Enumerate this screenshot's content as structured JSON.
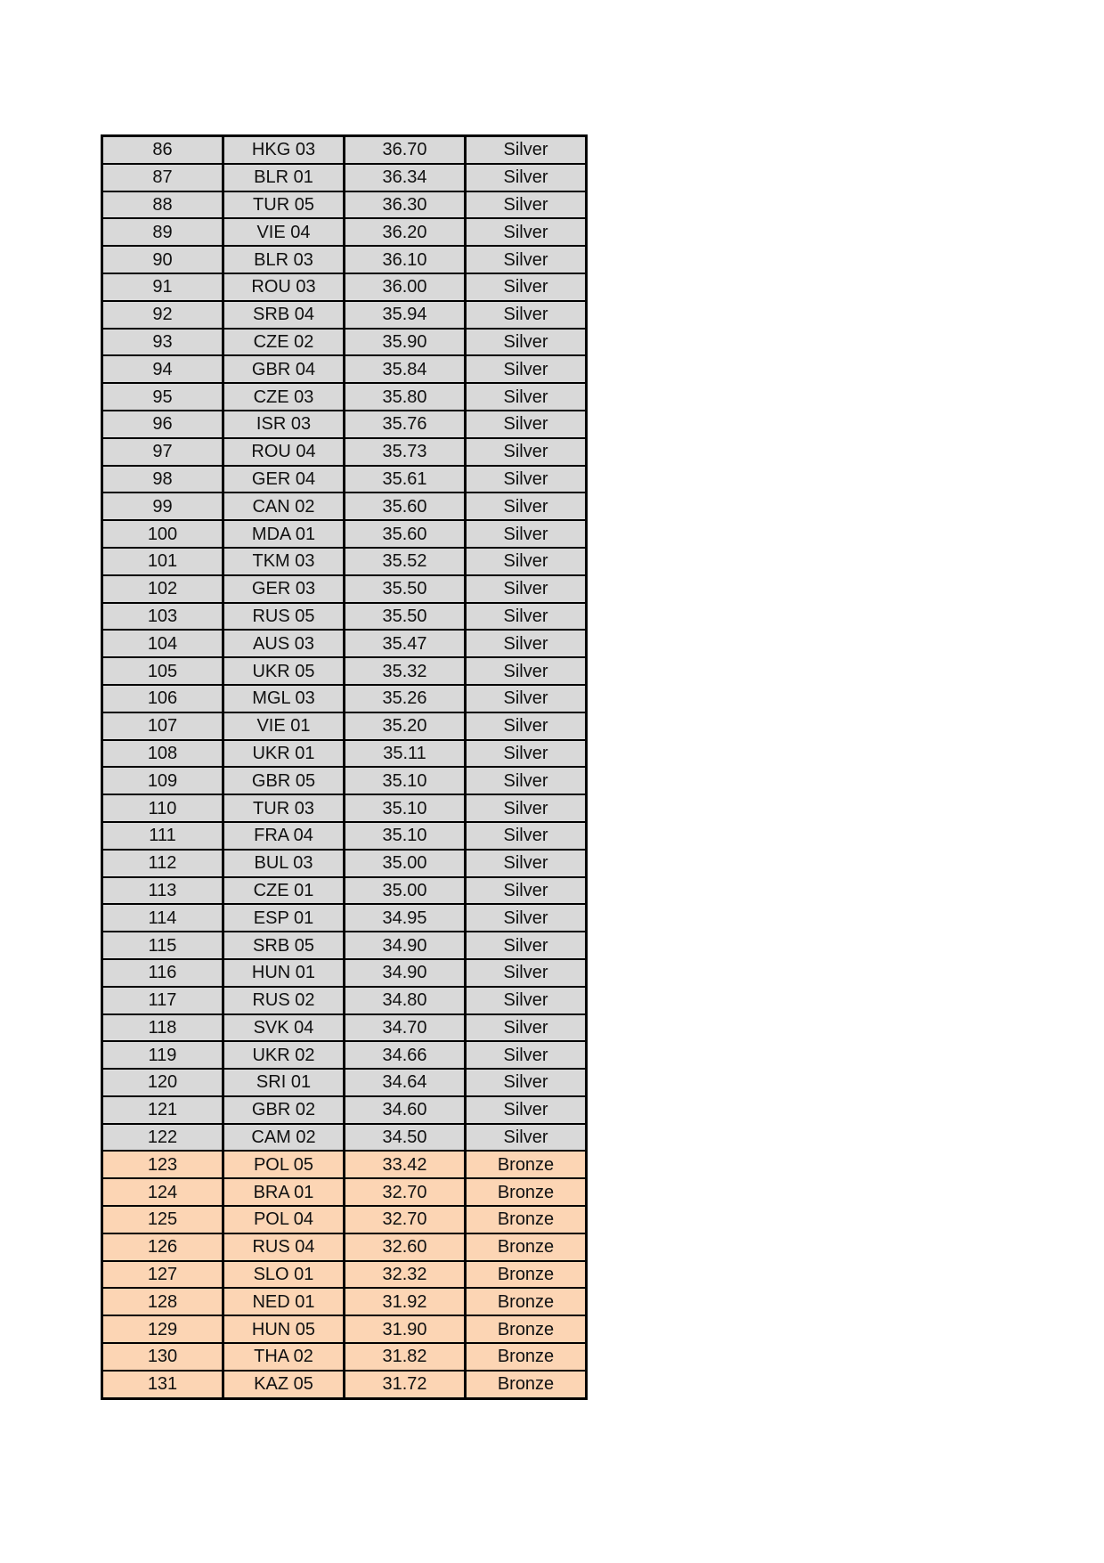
{
  "colors": {
    "Silver": "#d9d9d9",
    "Bronze": "#fcd5b4"
  },
  "rows": [
    [
      "86",
      "HKG 03",
      "36.70",
      "Silver"
    ],
    [
      "87",
      "BLR 01",
      "36.34",
      "Silver"
    ],
    [
      "88",
      "TUR 05",
      "36.30",
      "Silver"
    ],
    [
      "89",
      "VIE 04",
      "36.20",
      "Silver"
    ],
    [
      "90",
      "BLR 03",
      "36.10",
      "Silver"
    ],
    [
      "91",
      "ROU 03",
      "36.00",
      "Silver"
    ],
    [
      "92",
      "SRB 04",
      "35.94",
      "Silver"
    ],
    [
      "93",
      "CZE 02",
      "35.90",
      "Silver"
    ],
    [
      "94",
      "GBR 04",
      "35.84",
      "Silver"
    ],
    [
      "95",
      "CZE 03",
      "35.80",
      "Silver"
    ],
    [
      "96",
      "ISR 03",
      "35.76",
      "Silver"
    ],
    [
      "97",
      "ROU 04",
      "35.73",
      "Silver"
    ],
    [
      "98",
      "GER 04",
      "35.61",
      "Silver"
    ],
    [
      "99",
      "CAN 02",
      "35.60",
      "Silver"
    ],
    [
      "100",
      "MDA 01",
      "35.60",
      "Silver"
    ],
    [
      "101",
      "TKM 03",
      "35.52",
      "Silver"
    ],
    [
      "102",
      "GER 03",
      "35.50",
      "Silver"
    ],
    [
      "103",
      "RUS 05",
      "35.50",
      "Silver"
    ],
    [
      "104",
      "AUS 03",
      "35.47",
      "Silver"
    ],
    [
      "105",
      "UKR 05",
      "35.32",
      "Silver"
    ],
    [
      "106",
      "MGL 03",
      "35.26",
      "Silver"
    ],
    [
      "107",
      "VIE 01",
      "35.20",
      "Silver"
    ],
    [
      "108",
      "UKR 01",
      "35.11",
      "Silver"
    ],
    [
      "109",
      "GBR 05",
      "35.10",
      "Silver"
    ],
    [
      "110",
      "TUR 03",
      "35.10",
      "Silver"
    ],
    [
      "111",
      "FRA 04",
      "35.10",
      "Silver"
    ],
    [
      "112",
      "BUL 03",
      "35.00",
      "Silver"
    ],
    [
      "113",
      "CZE 01",
      "35.00",
      "Silver"
    ],
    [
      "114",
      "ESP 01",
      "34.95",
      "Silver"
    ],
    [
      "115",
      "SRB 05",
      "34.90",
      "Silver"
    ],
    [
      "116",
      "HUN 01",
      "34.90",
      "Silver"
    ],
    [
      "117",
      "RUS 02",
      "34.80",
      "Silver"
    ],
    [
      "118",
      "SVK 04",
      "34.70",
      "Silver"
    ],
    [
      "119",
      "UKR 02",
      "34.66",
      "Silver"
    ],
    [
      "120",
      "SRI 01",
      "34.64",
      "Silver"
    ],
    [
      "121",
      "GBR 02",
      "34.60",
      "Silver"
    ],
    [
      "122",
      "CAM 02",
      "34.50",
      "Silver"
    ],
    [
      "123",
      "POL 05",
      "33.42",
      "Bronze"
    ],
    [
      "124",
      "BRA 01",
      "32.70",
      "Bronze"
    ],
    [
      "125",
      "POL 04",
      "32.70",
      "Bronze"
    ],
    [
      "126",
      "RUS 04",
      "32.60",
      "Bronze"
    ],
    [
      "127",
      "SLO 01",
      "32.32",
      "Bronze"
    ],
    [
      "128",
      "NED 01",
      "31.92",
      "Bronze"
    ],
    [
      "129",
      "HUN 05",
      "31.90",
      "Bronze"
    ],
    [
      "130",
      "THA 02",
      "31.82",
      "Bronze"
    ],
    [
      "131",
      "KAZ 05",
      "31.72",
      "Bronze"
    ]
  ]
}
